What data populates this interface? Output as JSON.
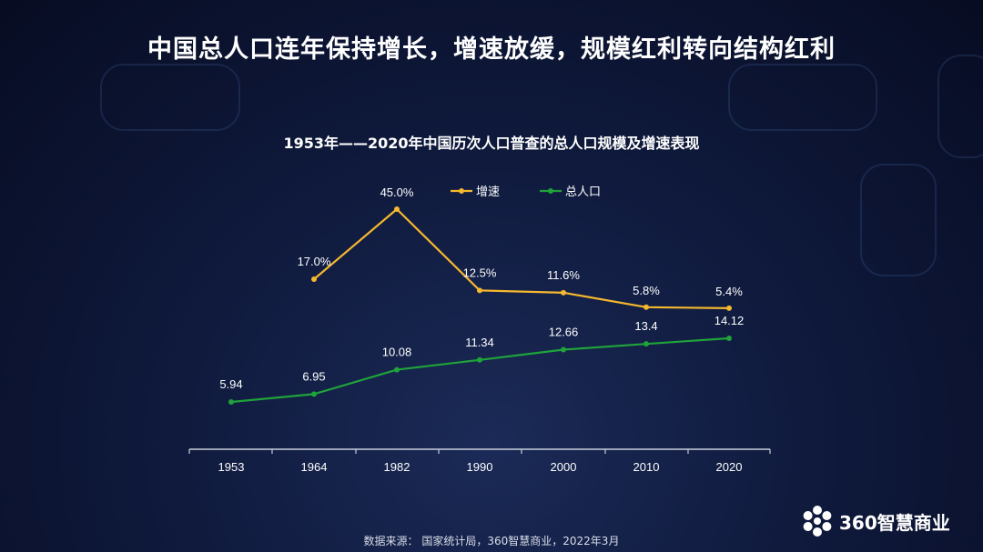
{
  "header": {
    "title": "中国总人口连年保持增长，增速放缓，规模红利转向结构红利"
  },
  "chart_data": {
    "type": "line",
    "title": "1953年——2020年中国历次人口普查的总人口规模及增速表现",
    "categories": [
      "1953",
      "1964",
      "1982",
      "1990",
      "2000",
      "2010",
      "2020"
    ],
    "series": [
      {
        "name": "增速",
        "color": "#f5b82e",
        "values": [
          null,
          17.0,
          45.0,
          12.5,
          11.6,
          5.8,
          5.4
        ],
        "labels": [
          "",
          "17.0%",
          "45.0%",
          "12.5%",
          "11.6%",
          "5.8%",
          "5.4%"
        ]
      },
      {
        "name": "总人口",
        "color": "#1fa33a",
        "values": [
          5.94,
          6.95,
          10.08,
          11.34,
          12.66,
          13.4,
          14.12
        ],
        "labels": [
          "5.94",
          "6.95",
          "10.08",
          "11.34",
          "12.66",
          "13.4",
          "14.12"
        ]
      }
    ],
    "legend": "top-center",
    "grid": false
  },
  "footer": {
    "source": "数据来源： 国家统计局，360智慧商业，2022年3月",
    "brand": "360智慧商业"
  }
}
